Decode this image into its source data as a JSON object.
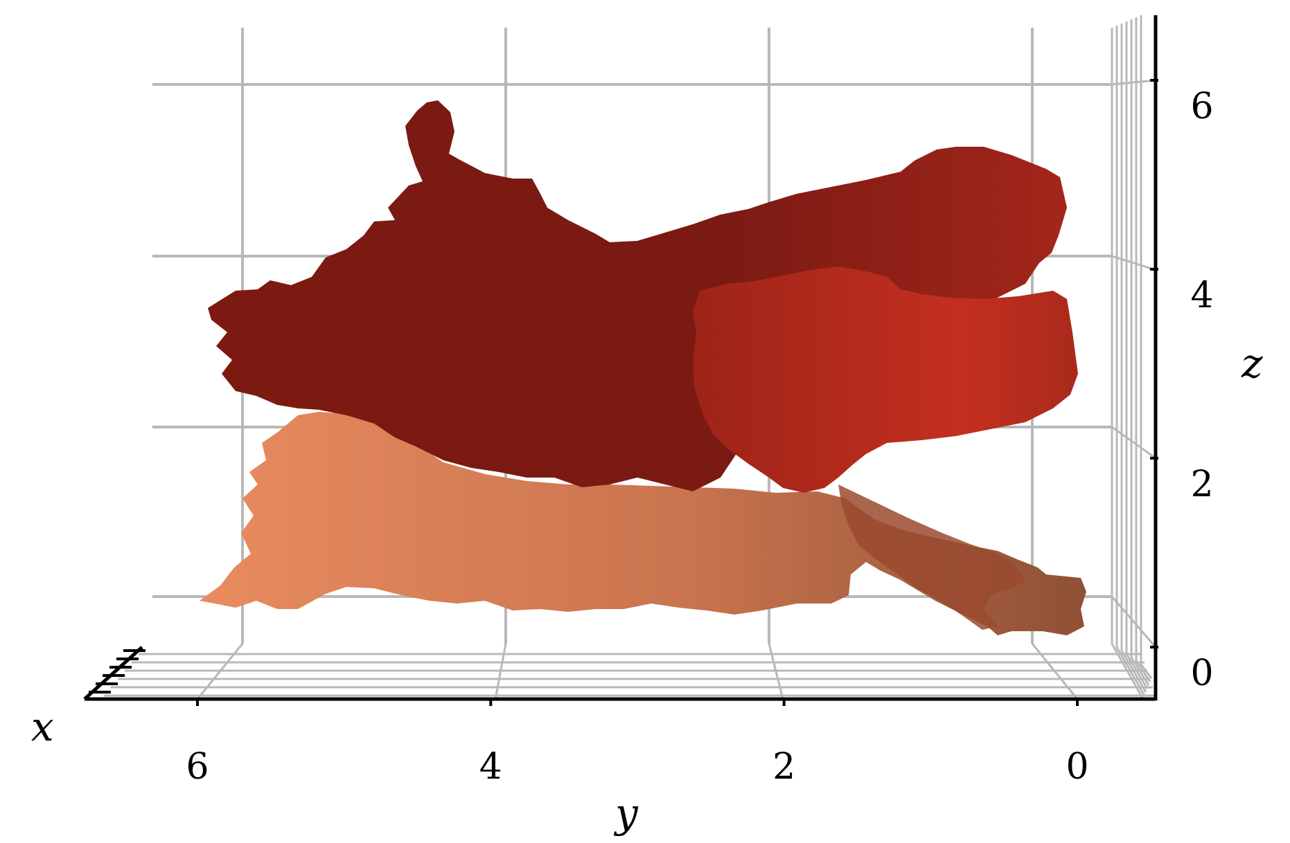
{
  "chart_data": {
    "type": "surface3d",
    "title": "",
    "axes": {
      "x": {
        "label": "x"
      },
      "y": {
        "label": "y",
        "ticks": [
          "6",
          "4",
          "2",
          "0"
        ],
        "lim": [
          0,
          6.6
        ],
        "reversed": true
      },
      "z": {
        "label": "z",
        "ticks": [
          "0",
          "2",
          "4",
          "6"
        ],
        "lim": [
          0,
          7
        ]
      }
    },
    "grid": true,
    "surfaces": [
      {
        "name_hint": "lower",
        "color": "#e58a5e",
        "y_range": [
          0.3,
          6.4
        ],
        "z_range": [
          0.4,
          3.1
        ]
      },
      {
        "name_hint": "upper",
        "color": "#7a1a12",
        "y_range": [
          0.4,
          6.3
        ],
        "z_range": [
          0.6,
          6.4
        ]
      },
      {
        "name_hint": "middle",
        "color": "#b8281c",
        "y_range": [
          0.5,
          3.4
        ],
        "z_range": [
          2.2,
          4.4
        ]
      }
    ]
  }
}
